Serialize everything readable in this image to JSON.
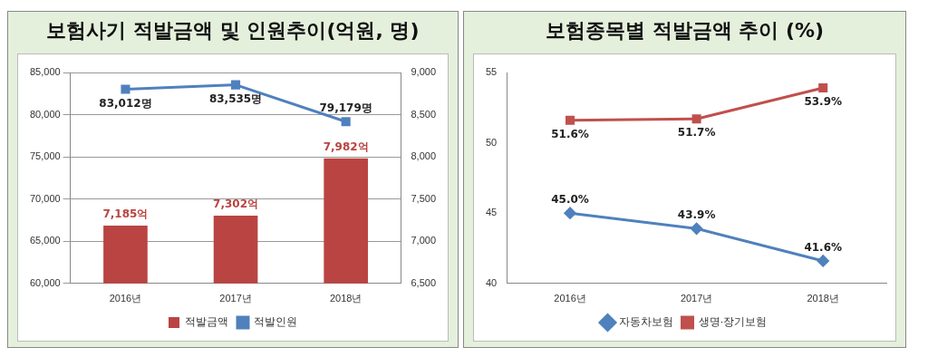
{
  "chart_data": [
    {
      "type": "bar",
      "title": "보험사기 적발금액 및 인원추이(억원, 명)",
      "categories": [
        "2016년",
        "2017년",
        "2018년"
      ],
      "series": [
        {
          "name": "적발금액",
          "axis": "y2",
          "color": "#b94441",
          "values": [
            7185,
            7302,
            7982
          ],
          "value_labels": [
            "7,185억",
            "7,302억",
            "7,982억"
          ]
        },
        {
          "name": "적발인원",
          "type": "line",
          "axis": "y",
          "color": "#4f81bd",
          "marker": "square",
          "values": [
            83012,
            83535,
            79179
          ],
          "value_labels": [
            "83,012명",
            "83,535명",
            "79,179명"
          ]
        }
      ],
      "ylim": [
        60000,
        85000
      ],
      "yticks": [
        {
          "value": 60000,
          "label": "60,000"
        },
        {
          "value": 65000,
          "label": "65,000"
        },
        {
          "value": 70000,
          "label": "70,000"
        },
        {
          "value": 75000,
          "label": "75,000"
        },
        {
          "value": 80000,
          "label": "80,000"
        },
        {
          "value": 85000,
          "label": "85,000"
        }
      ],
      "y2lim": [
        6500,
        9000
      ],
      "y2ticks": [
        {
          "value": 6500,
          "label": "6,500"
        },
        {
          "value": 7000,
          "label": "7,000"
        },
        {
          "value": 7500,
          "label": "7,500"
        },
        {
          "value": 8000,
          "label": "8,000"
        },
        {
          "value": 8500,
          "label": "8,500"
        },
        {
          "value": 9000,
          "label": "9,000"
        }
      ],
      "grid": "y",
      "legend": "bottom"
    },
    {
      "type": "line",
      "title": "보험종목별 적발금액 추이 (%)",
      "categories": [
        "2016년",
        "2017년",
        "2018년"
      ],
      "series": [
        {
          "name": "자동차보험",
          "color": "#4f81bd",
          "marker": "diamond",
          "values": [
            45.0,
            43.9,
            41.6
          ],
          "value_labels": [
            "45.0%",
            "43.9%",
            "41.6%"
          ]
        },
        {
          "name": "생명·장기보험",
          "color": "#c0504d",
          "marker": "square",
          "values": [
            51.6,
            51.7,
            53.9
          ],
          "value_labels": [
            "51.6%",
            "51.7%",
            "53.9%"
          ]
        }
      ],
      "ylim": [
        40,
        55
      ],
      "yticks": [
        40,
        45,
        50,
        55
      ],
      "grid": false,
      "legend": "bottom"
    }
  ]
}
